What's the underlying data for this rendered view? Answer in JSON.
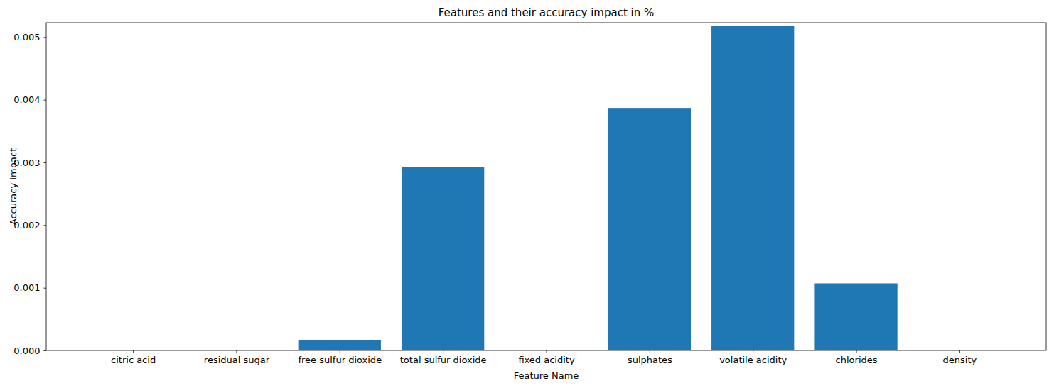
{
  "chart_data": {
    "type": "bar",
    "title": "Features and their accuracy impact in %",
    "x_label": "Feature Name",
    "y_label": "Accuracy Impact",
    "categories": [
      "citric acid",
      "residual sugar",
      "free sulfur dioxide",
      "total sulfur dioxide",
      "fixed acidity",
      "sulphates",
      "volatile acidity",
      "chlorides",
      "density"
    ],
    "values": [
      0,
      0,
      0.00016,
      0.00293,
      0,
      0.00387,
      0.00518,
      0.00107,
      0
    ],
    "color": "#1f77b4",
    "ylim": [
      0,
      0.00523
    ],
    "yticks": [
      {
        "value": 0,
        "label": "0.000"
      },
      {
        "value": 0.001,
        "label": "0.001"
      },
      {
        "value": 0.002,
        "label": "0.002"
      },
      {
        "value": 0.003,
        "label": "0.003"
      },
      {
        "value": 0.004,
        "label": "0.004"
      },
      {
        "value": 0.005,
        "label": "0.005"
      }
    ],
    "grid": false
  }
}
